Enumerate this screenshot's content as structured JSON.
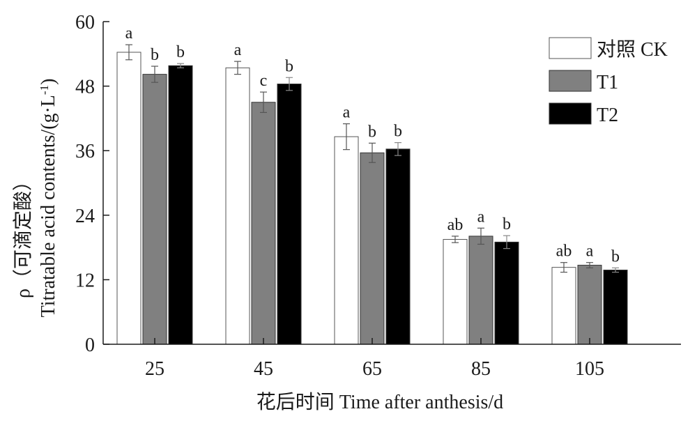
{
  "chart_data": {
    "type": "bar",
    "categories": [
      "25",
      "45",
      "65",
      "85",
      "105"
    ],
    "series": [
      {
        "name": "对照 CK",
        "color": "#ffffff",
        "values": [
          54.3,
          51.4,
          38.6,
          19.5,
          14.3
        ],
        "errors": [
          1.4,
          1.2,
          2.4,
          0.6,
          0.9
        ],
        "labels": [
          "a",
          "a",
          "a",
          "ab",
          "ab"
        ]
      },
      {
        "name": "T1",
        "color": "#808080",
        "values": [
          50.2,
          45.0,
          35.6,
          20.1,
          14.7
        ],
        "errors": [
          1.5,
          1.9,
          1.8,
          1.5,
          0.5
        ],
        "labels": [
          "b",
          "c",
          "b",
          "a",
          "a"
        ]
      },
      {
        "name": "T2",
        "color": "#000000",
        "values": [
          51.8,
          48.4,
          36.3,
          19.0,
          13.8
        ],
        "errors": [
          0.4,
          1.2,
          1.2,
          1.2,
          0.4
        ],
        "labels": [
          "b",
          "b",
          "b",
          "b",
          "b"
        ]
      }
    ],
    "yticks": [
      "0",
      "12",
      "24",
      "36",
      "48",
      "60"
    ],
    "ylim": [
      0,
      60
    ],
    "ylabel_line1": "ρ（可滴定酸）",
    "ylabel_line2": "Titratable acid contents/(g·L",
    "ylabel_sup": "-1",
    "ylabel_end": ")",
    "xlabel": "花后时间 Time after anthesis/d",
    "legend_position": "top-right",
    "grid": false
  }
}
